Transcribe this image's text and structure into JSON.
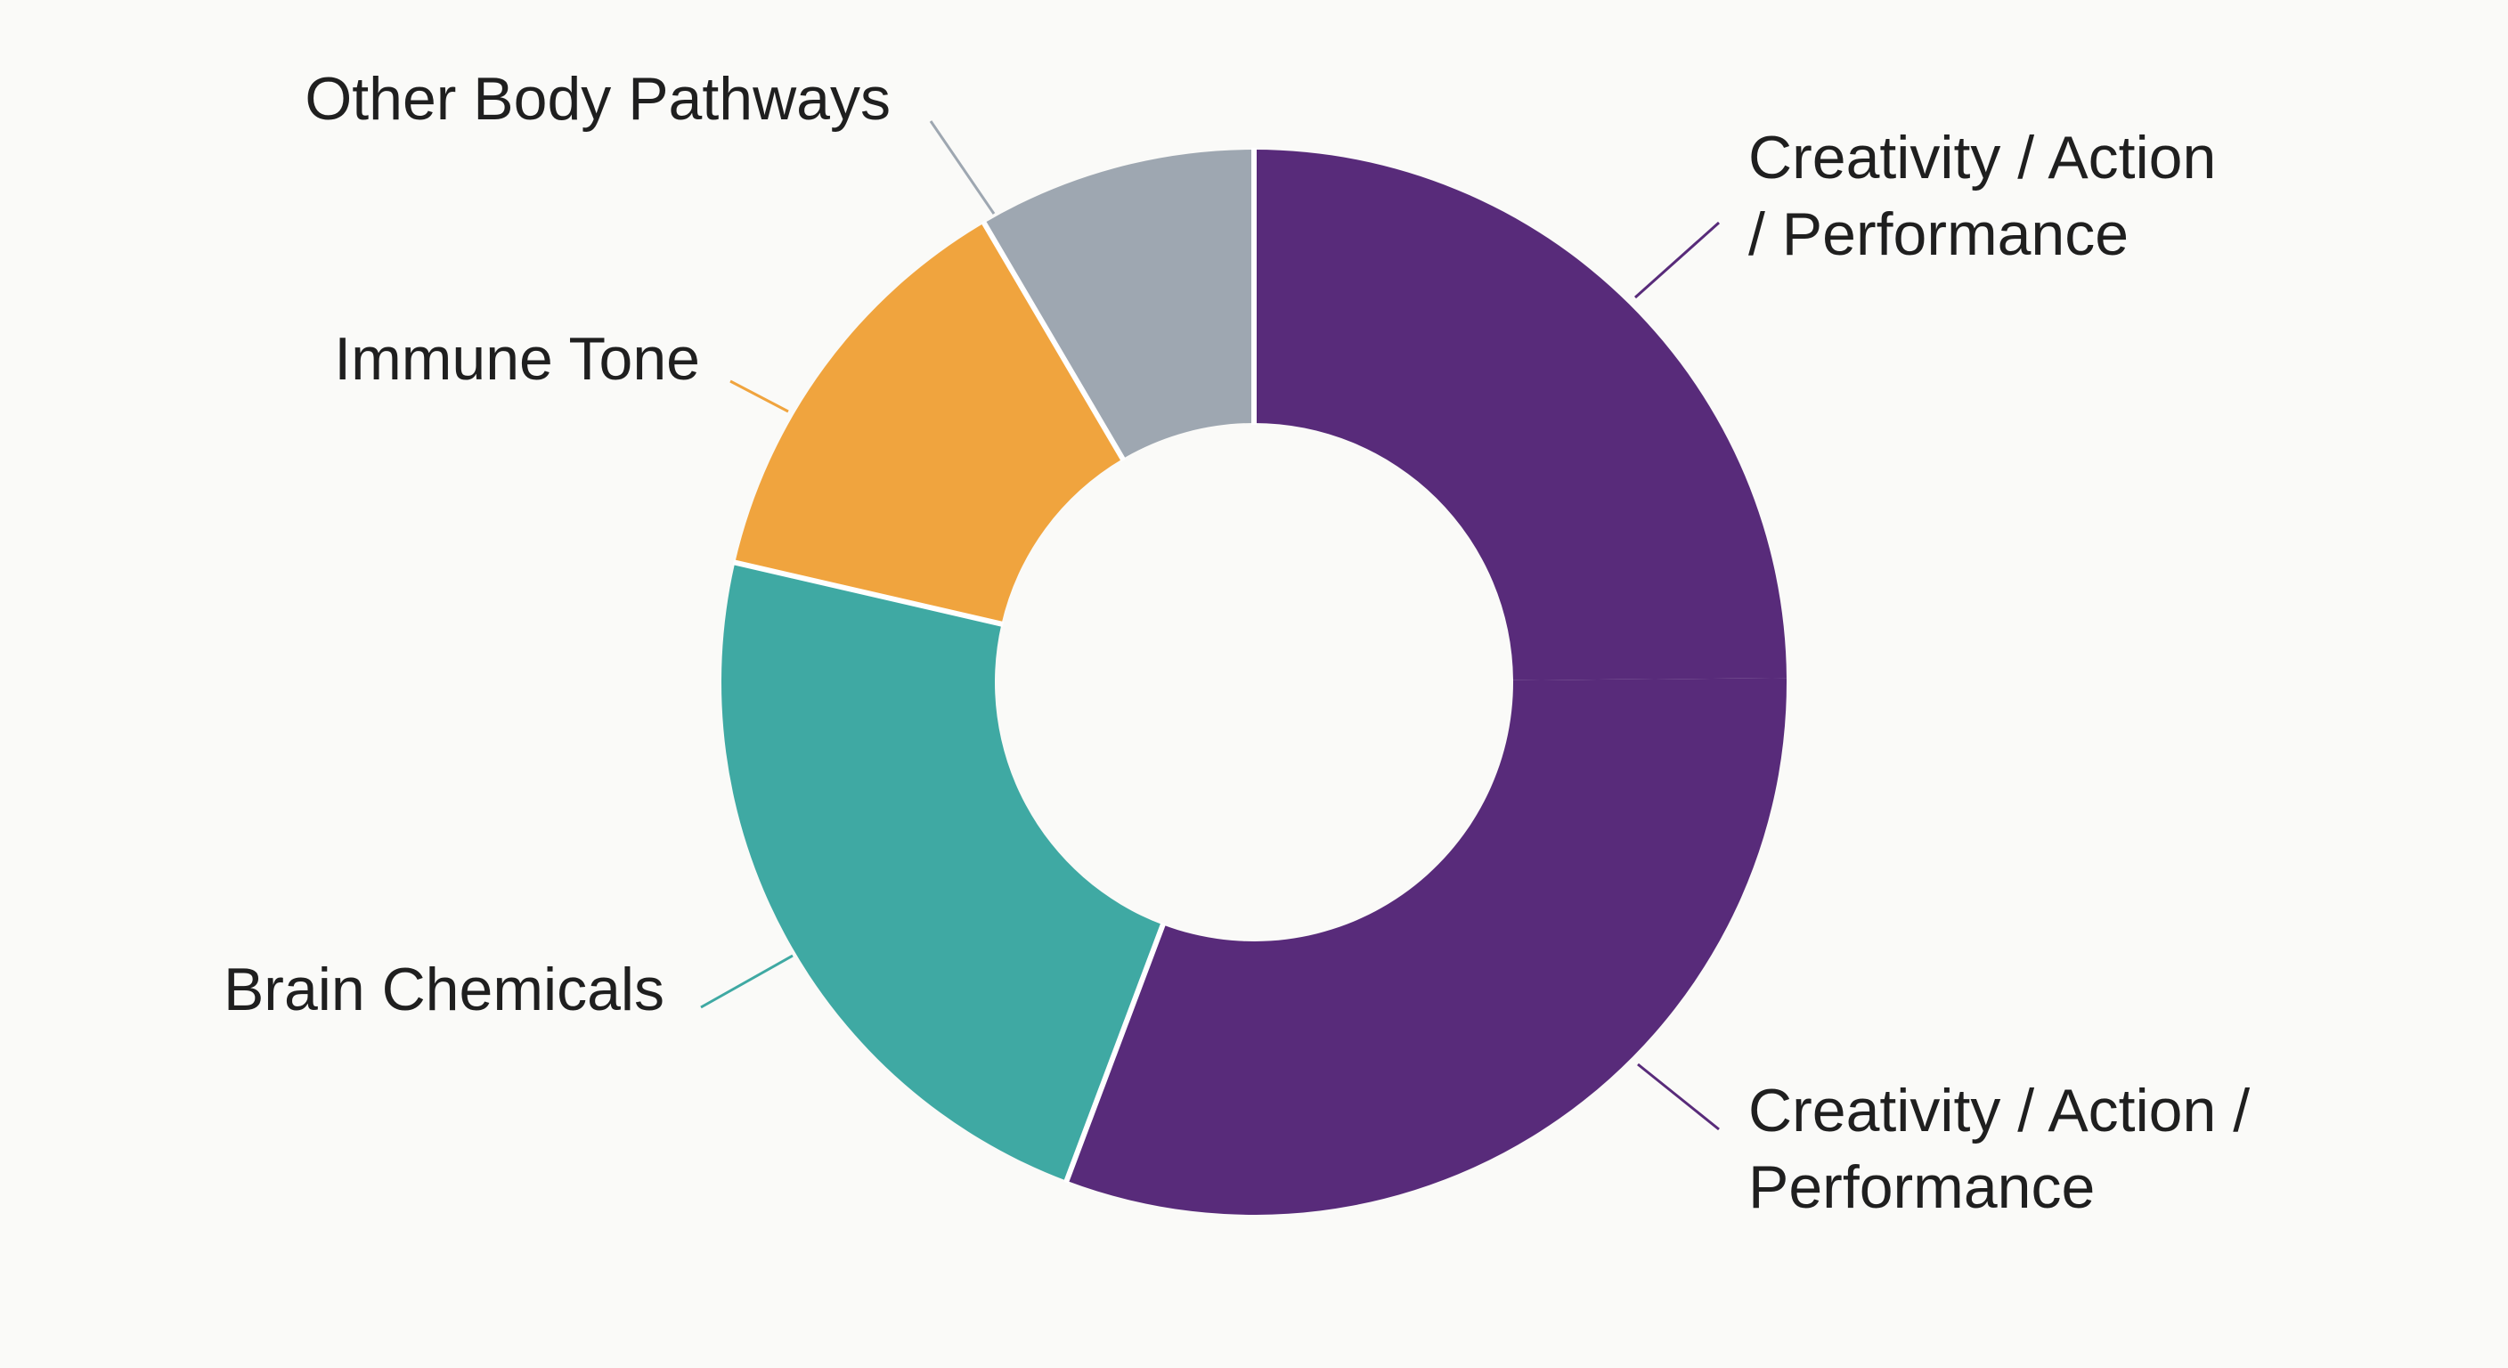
{
  "chart_data": {
    "type": "pie",
    "style": "donut",
    "legend": "none",
    "slices": [
      {
        "label_lines": [
          "Creativity / Action",
          "/ Performance"
        ],
        "value": 25,
        "color": "#582b7a"
      },
      {
        "label_lines": [
          "Creativity / Action /",
          "Performance"
        ],
        "value": 31,
        "color": "#582b7a"
      },
      {
        "label_lines": [
          "Brain Chemicals"
        ],
        "value": 23,
        "color": "#3fa9a3"
      },
      {
        "label_lines": [
          "Immune Tone"
        ],
        "value": 13,
        "color": "#f0a43e"
      },
      {
        "label_lines": [
          "Other Body Pathways"
        ],
        "value": 8.5,
        "color": "#9ea7b1"
      }
    ]
  },
  "colors": {
    "background": "#fafaf8",
    "separator": "#ffffff"
  }
}
